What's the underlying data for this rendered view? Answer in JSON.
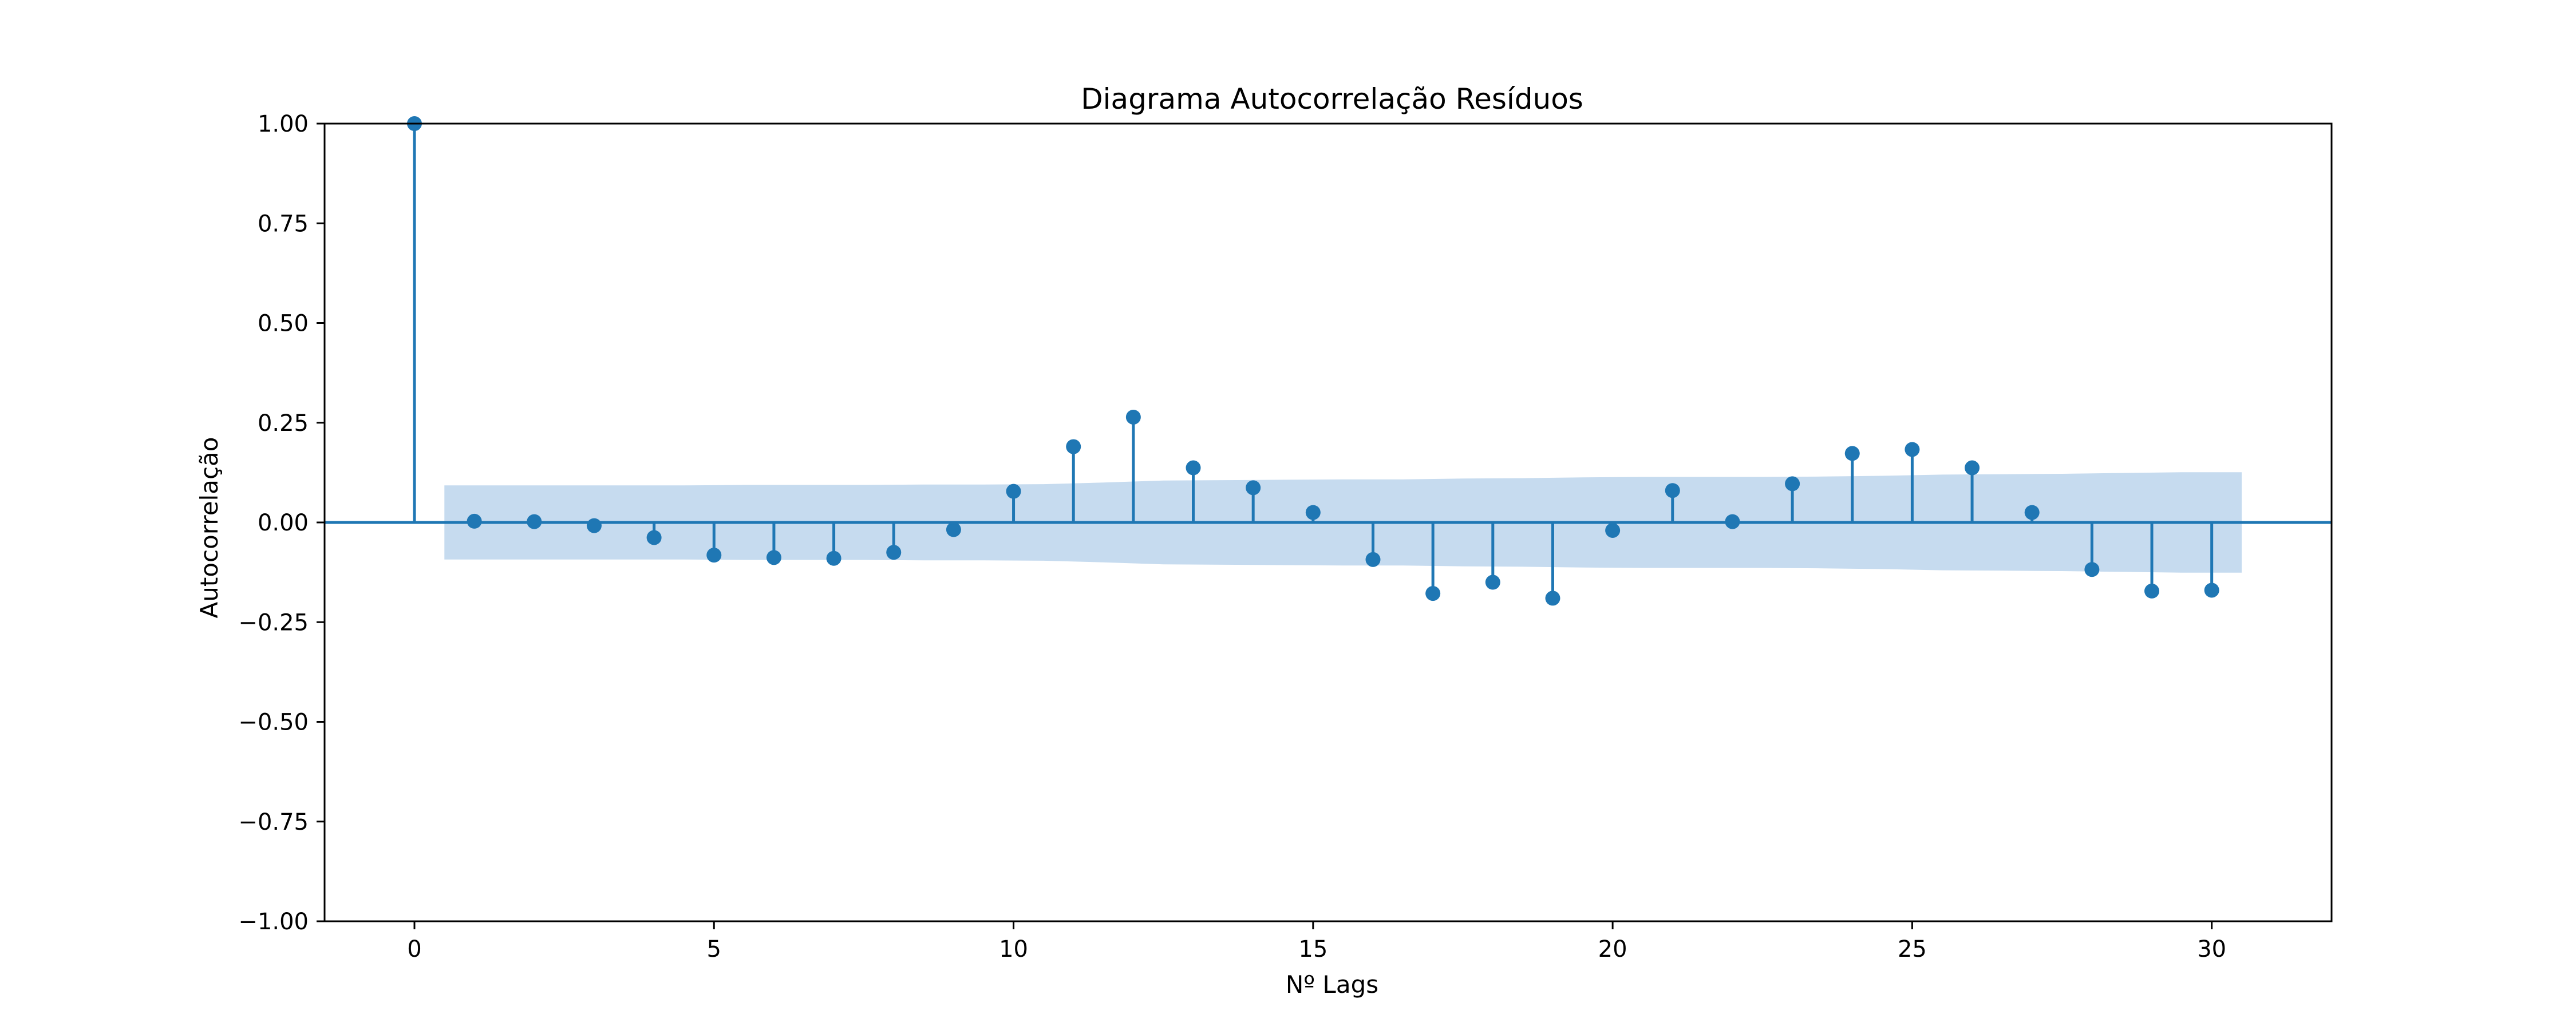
{
  "chart_data": {
    "type": "stem",
    "title": "Diagrama Autocorrelação Resíduos",
    "xlabel": "Nº Lags",
    "ylabel": "Autocorrelação",
    "xlim": [
      -1.5,
      32.0
    ],
    "ylim": [
      -1.0,
      1.0
    ],
    "xticks": [
      0,
      5,
      10,
      15,
      20,
      25,
      30
    ],
    "yticks": [
      -1.0,
      -0.75,
      -0.5,
      -0.25,
      0.0,
      0.25,
      0.5,
      0.75,
      1.0
    ],
    "ytick_labels": [
      "−1.00",
      "−0.75",
      "−0.50",
      "−0.25",
      "0.00",
      "0.25",
      "0.50",
      "0.75",
      "1.00"
    ],
    "grid": false,
    "color": "#1f77b4",
    "band_color": "#c6dbef",
    "lags": [
      0,
      1,
      2,
      3,
      4,
      5,
      6,
      7,
      8,
      9,
      10,
      11,
      12,
      13,
      14,
      15,
      16,
      17,
      18,
      19,
      20,
      21,
      22,
      23,
      24,
      25,
      26,
      27,
      28,
      29,
      30
    ],
    "values": [
      1.0,
      0.003,
      0.002,
      -0.008,
      -0.038,
      -0.082,
      -0.088,
      -0.09,
      -0.075,
      -0.018,
      0.078,
      0.19,
      0.264,
      0.137,
      0.087,
      0.025,
      -0.093,
      -0.178,
      -0.15,
      -0.19,
      -0.02,
      0.08,
      0.002,
      0.097,
      0.173,
      0.183,
      0.137,
      0.025,
      -0.118,
      -0.172,
      -0.17
    ],
    "confidence_band": {
      "x_start": 0.5,
      "x_end": 30.5,
      "upper": [
        0.093,
        0.093,
        0.093,
        0.093,
        0.093,
        0.094,
        0.094,
        0.094,
        0.095,
        0.095,
        0.096,
        0.1,
        0.105,
        0.106,
        0.107,
        0.108,
        0.108,
        0.11,
        0.111,
        0.113,
        0.114,
        0.114,
        0.114,
        0.115,
        0.117,
        0.12,
        0.121,
        0.122,
        0.124,
        0.126,
        0.126
      ]
    }
  }
}
